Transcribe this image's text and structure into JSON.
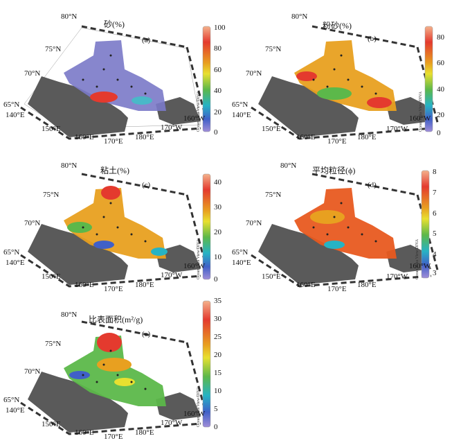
{
  "panels": [
    {
      "id": "a",
      "title": "砂(%)",
      "letter": "(a)",
      "ticks": [
        "100",
        "80",
        "60",
        "40",
        "20",
        "0"
      ],
      "palette": "odv",
      "field_desc": "mostly low sand values with higher values near the coast",
      "credit": "Ocean Data View/DIVA"
    },
    {
      "id": "b",
      "title": "粉砂(%)",
      "letter": "(b)",
      "ticks": [
        "80",
        "60",
        "40",
        "20",
        "0"
      ],
      "palette": "odv",
      "credit": "Ocean Data View/DIVA"
    },
    {
      "id": "c",
      "title": "粘土(%)",
      "letter": "(c)",
      "ticks": [
        "40",
        "30",
        "20",
        "10",
        "0"
      ],
      "palette": "odv",
      "credit": "Ocean Data View/DIVA"
    },
    {
      "id": "d",
      "title": "平均粒径(ϕ)",
      "letter": "(d)",
      "ticks": [
        "8",
        "7",
        "6",
        "5",
        "4",
        "3"
      ],
      "palette": "odv",
      "credit": "Ocean Data View/DIVA"
    },
    {
      "id": "e",
      "title": "比表面积(m²/g)",
      "letter": "(e)",
      "ticks": [
        "35",
        "30",
        "25",
        "20",
        "15",
        "10",
        "5",
        "0"
      ],
      "palette": "odv",
      "credit": "Ocean Data View/DIVA"
    }
  ],
  "latitudes": [
    "80°N",
    "75°N",
    "70°N",
    "65°N"
  ],
  "longitudes": [
    "140°E",
    "150°E",
    "160°E",
    "170°E",
    "180°E",
    "170°W",
    "160°W"
  ],
  "colors": {
    "land": "#5a5a5a",
    "colorbar": [
      "#f4b28c",
      "#e43a2e",
      "#e8a020",
      "#e8e030",
      "#5cb84a",
      "#26b3c4",
      "#4060c8",
      "#a08ed8"
    ]
  }
}
